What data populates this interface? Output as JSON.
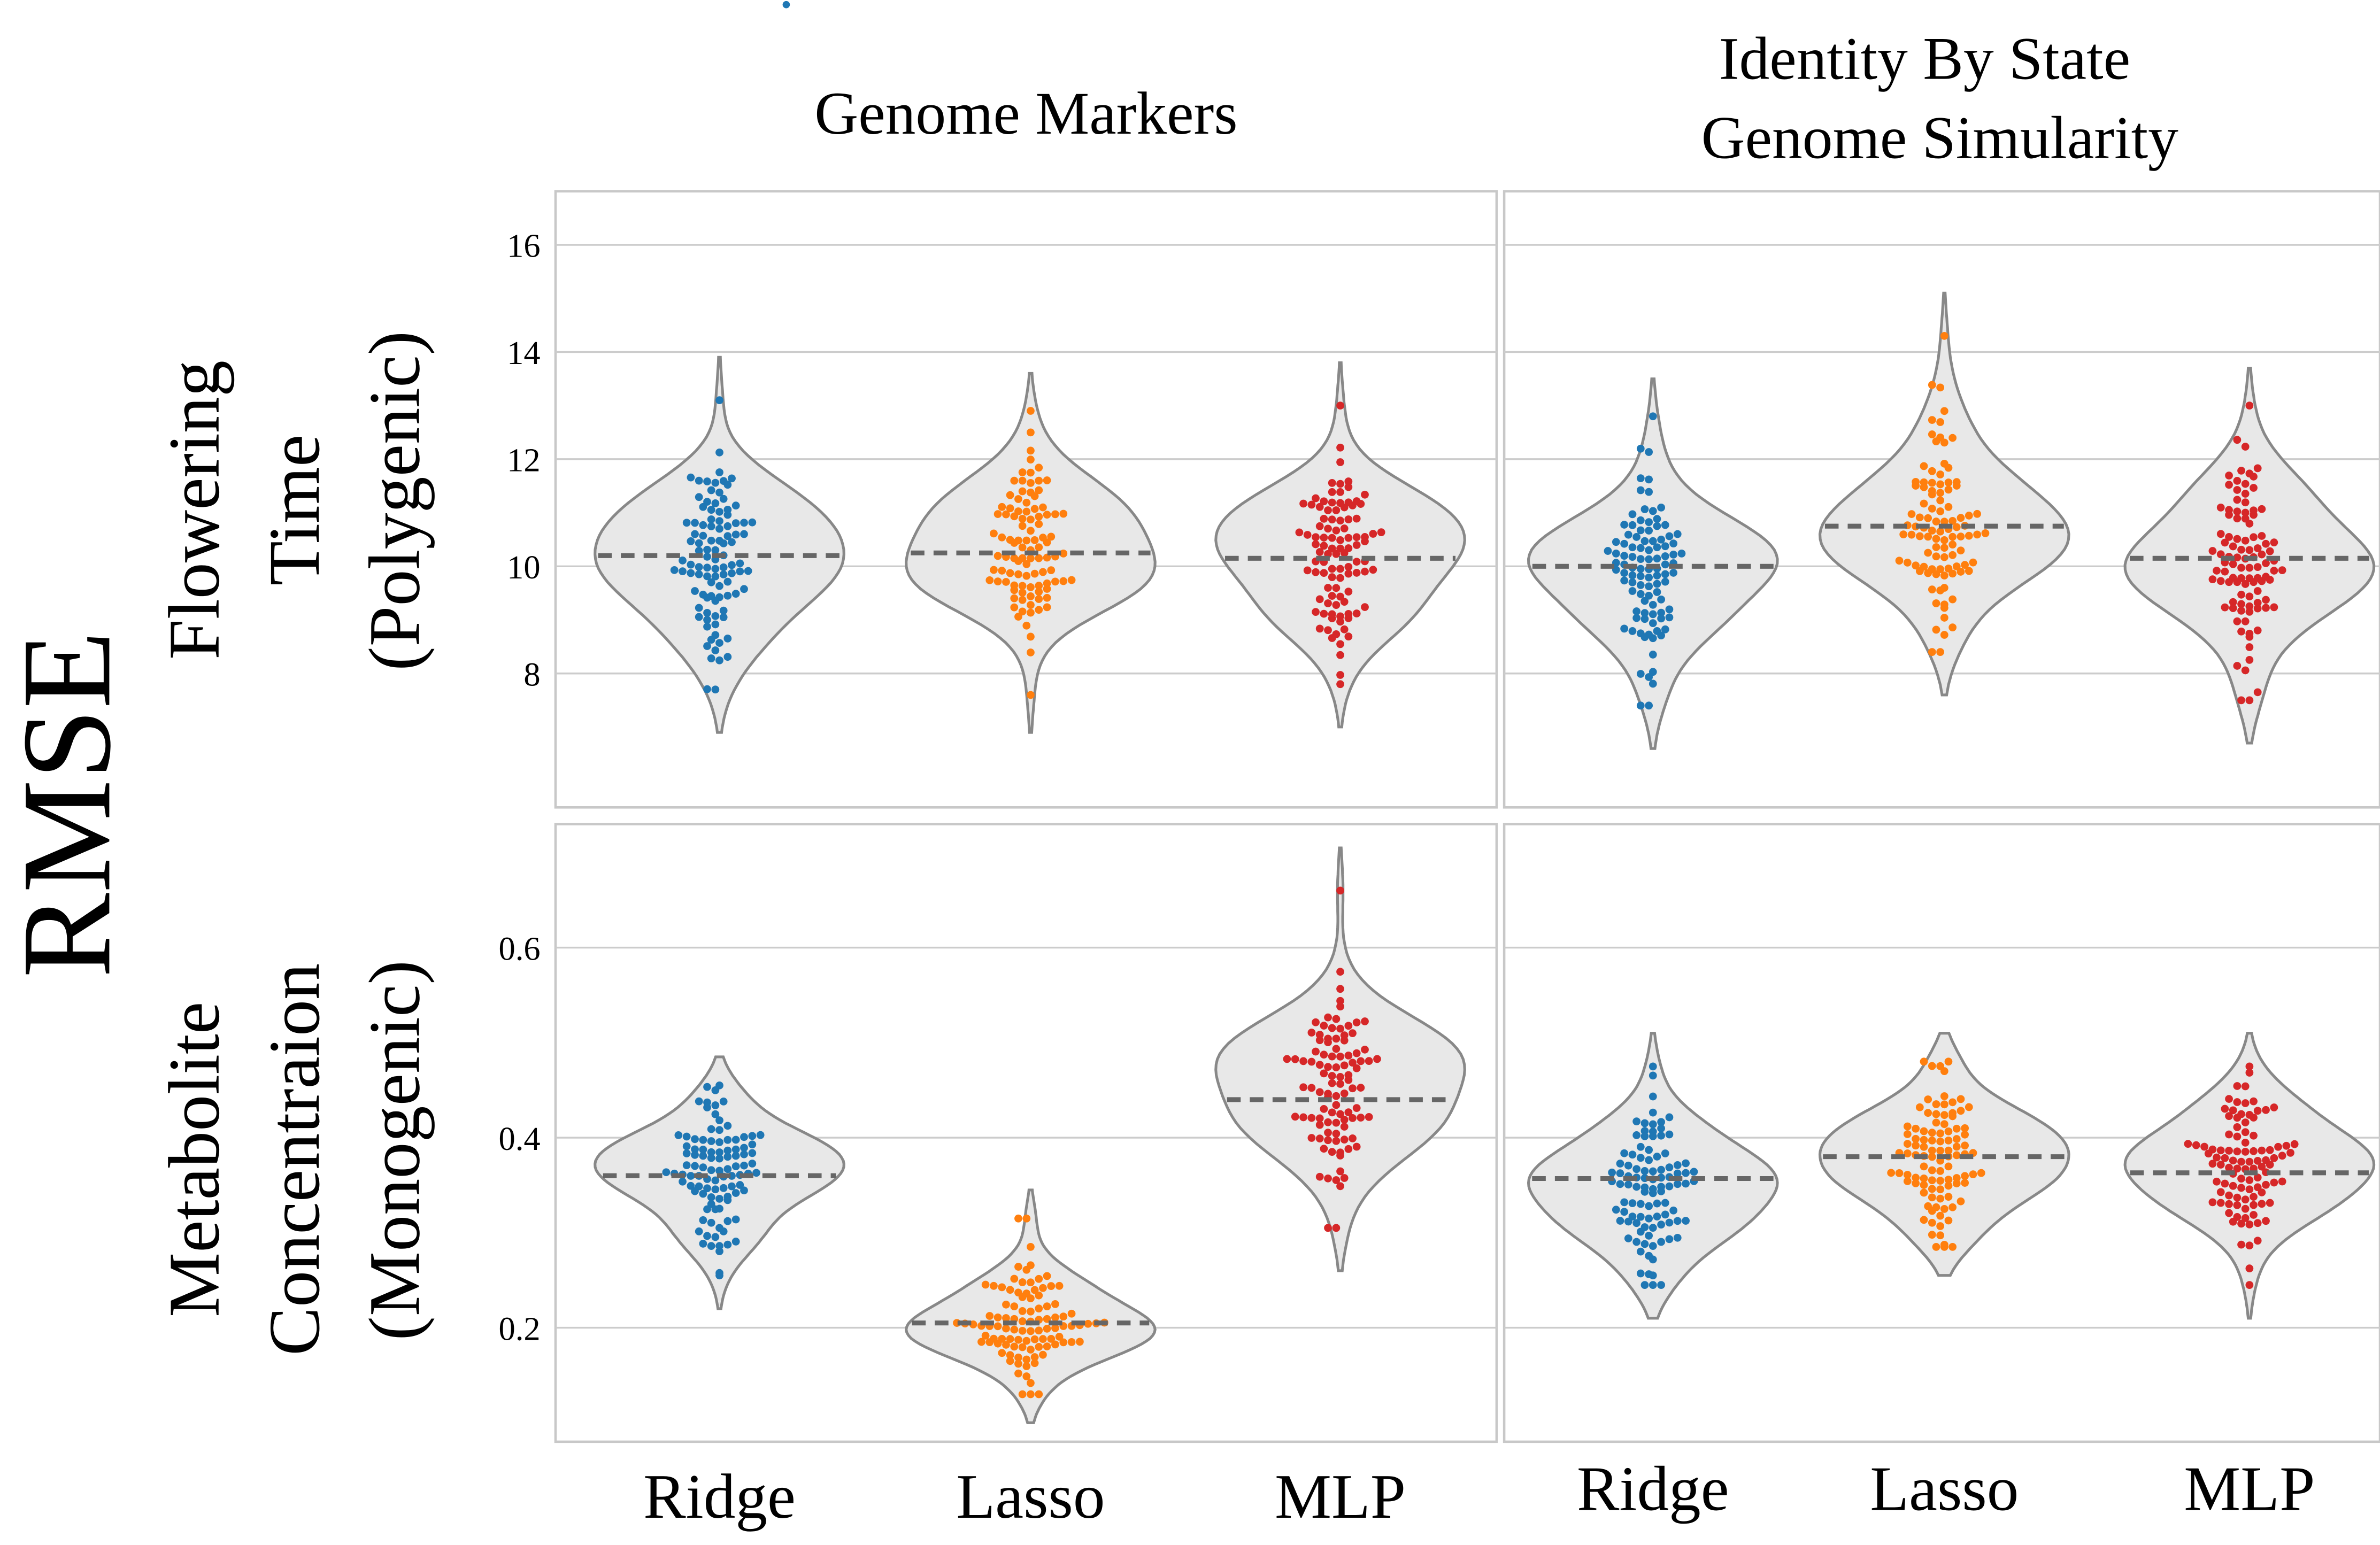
{
  "figure": {
    "ylabel": "RMSE",
    "column_titles": [
      [
        "Genome Markers"
      ],
      [
        "Identity By State",
        "Genome Simularity"
      ]
    ],
    "row_titles": [
      [
        "Flowering",
        "Time",
        "(Polygenic)"
      ],
      [
        "Metabolite",
        "Concentraion",
        "(Monogenic)"
      ]
    ]
  },
  "colors": {
    "Ridge": "#1f77b4",
    "Lasso": "#ff7f0e",
    "MLP": "#d62728",
    "violin_fill": "#e8e8e8",
    "violin_edge": "#888888",
    "median_line": "#666666",
    "grid": "#cccccc",
    "frame": "#c8c8c8"
  },
  "chart_data": [
    {
      "type": "violin-swarm",
      "row": "Flowering Time (Polygenic)",
      "column": "Genome Markers",
      "categories": [
        "Ridge",
        "Lasso",
        "MLP"
      ],
      "ylim": [
        5.5,
        17
      ],
      "yticks": [
        8,
        10,
        12,
        14,
        16
      ],
      "grid": true,
      "series": [
        {
          "name": "Ridge",
          "median": 10.2,
          "min": 7.7,
          "max": 13.1,
          "std": 0.95,
          "violin_range": [
            6.9,
            13.9
          ]
        },
        {
          "name": "Lasso",
          "median": 10.25,
          "min": 7.6,
          "max": 12.9,
          "std": 0.9,
          "violin_range": [
            6.9,
            13.6
          ]
        },
        {
          "name": "MLP",
          "median": 10.15,
          "min": 7.8,
          "max": 13.0,
          "std": 0.95,
          "violin_range": [
            7.0,
            13.8
          ]
        }
      ]
    },
    {
      "type": "violin-swarm",
      "row": "Flowering Time (Polygenic)",
      "column": "Identity By State Genome Simularity",
      "categories": [
        "Ridge",
        "Lasso",
        "MLP"
      ],
      "ylim": [
        5.5,
        17
      ],
      "yticks": [
        8,
        10,
        12,
        14,
        16
      ],
      "grid": true,
      "series": [
        {
          "name": "Ridge",
          "median": 10.0,
          "min": 7.4,
          "max": 12.8,
          "std": 0.95,
          "violin_range": [
            6.6,
            13.5
          ]
        },
        {
          "name": "Lasso",
          "median": 10.75,
          "min": 8.4,
          "max": 14.3,
          "std": 0.95,
          "violin_range": [
            7.6,
            15.1
          ]
        },
        {
          "name": "MLP",
          "median": 10.15,
          "min": 7.5,
          "max": 13.0,
          "std": 0.95,
          "violin_range": [
            6.7,
            13.7
          ]
        }
      ]
    },
    {
      "type": "violin-swarm",
      "row": "Metabolite Concentraion (Monogenic)",
      "column": "Genome Markers",
      "categories": [
        "Ridge",
        "Lasso",
        "MLP"
      ],
      "ylim": [
        0.08,
        0.73
      ],
      "yticks": [
        0.2,
        0.4,
        0.6
      ],
      "grid": true,
      "series": [
        {
          "name": "Ridge",
          "median": 0.36,
          "min": 0.255,
          "max": 0.455,
          "std": 0.04,
          "violin_range": [
            0.22,
            0.485
          ]
        },
        {
          "name": "Lasso",
          "median": 0.205,
          "min": 0.13,
          "max": 0.315,
          "std": 0.038,
          "violin_range": [
            0.1,
            0.345
          ]
        },
        {
          "name": "MLP",
          "median": 0.44,
          "min": 0.305,
          "max": 0.66,
          "std": 0.055,
          "violin_range": [
            0.26,
            0.705
          ]
        }
      ]
    },
    {
      "type": "violin-swarm",
      "row": "Metabolite Concentraion (Monogenic)",
      "column": "Identity By State Genome Simularity",
      "categories": [
        "Ridge",
        "Lasso",
        "MLP"
      ],
      "ylim": [
        0.08,
        0.73
      ],
      "yticks": [
        0.2,
        0.4,
        0.6
      ],
      "grid": true,
      "series": [
        {
          "name": "Ridge",
          "median": 0.357,
          "min": 0.245,
          "max": 0.475,
          "std": 0.045,
          "violin_range": [
            0.21,
            0.51
          ]
        },
        {
          "name": "Lasso",
          "median": 0.38,
          "min": 0.285,
          "max": 0.48,
          "std": 0.04,
          "violin_range": [
            0.255,
            0.51
          ]
        },
        {
          "name": "MLP",
          "median": 0.363,
          "min": 0.245,
          "max": 0.475,
          "std": 0.045,
          "violin_range": [
            0.21,
            0.51
          ]
        }
      ]
    }
  ]
}
